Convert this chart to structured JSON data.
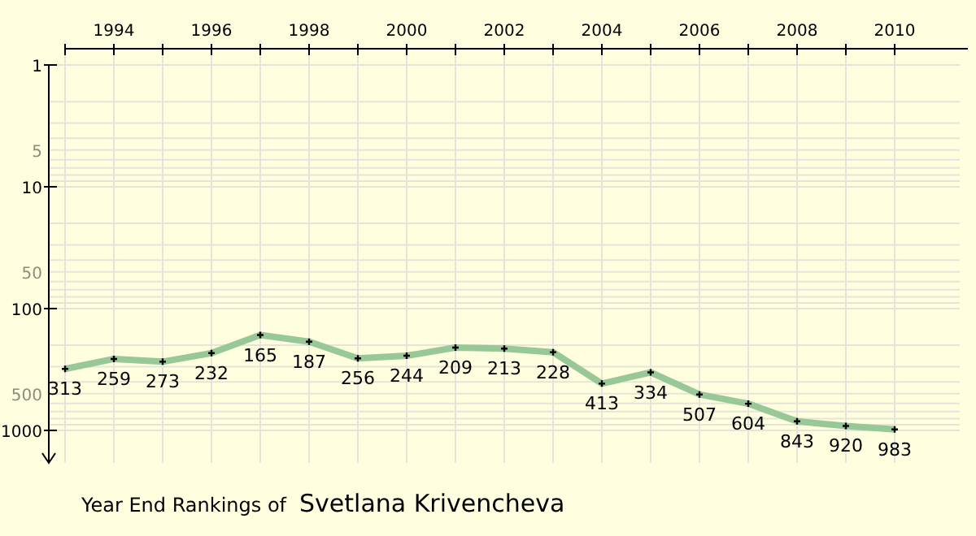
{
  "chart_data": {
    "type": "line",
    "title": "Year End Rankings of",
    "subtitle": "Svetlana Krivencheva",
    "x": [
      1993,
      1994,
      1995,
      1996,
      1997,
      1998,
      1999,
      2000,
      2001,
      2002,
      2003,
      2004,
      2005,
      2006,
      2007,
      2008,
      2009,
      2010
    ],
    "series": [
      {
        "color": "#98c898",
        "values": [
          313,
          259,
          273,
          232,
          165,
          187,
          256,
          244,
          209,
          213,
          228,
          413,
          334,
          507,
          604,
          843,
          920,
          983
        ]
      }
    ],
    "xlim": [
      1993,
      2011.5
    ],
    "xticks": [
      {
        "value": 1993,
        "label": null
      },
      1994,
      {
        "value": 1995,
        "label": null
      },
      1996,
      {
        "value": 1997,
        "label": null
      },
      1998,
      {
        "value": 1999,
        "label": null
      },
      2000,
      {
        "value": 2001,
        "label": null
      },
      2002,
      {
        "value": 2003,
        "label": null
      },
      2004,
      {
        "value": 2005,
        "label": null
      },
      2006,
      {
        "value": 2007,
        "label": null
      },
      2008,
      {
        "value": 2009,
        "label": null
      },
      2010
    ],
    "ylim": [
      1850,
      1
    ],
    "log": true,
    "yticks": [
      1,
      {
        "value": 2,
        "label": null
      },
      {
        "value": 3,
        "label": null
      },
      {
        "value": 4,
        "label": null
      },
      5,
      {
        "value": 6,
        "label": null
      },
      {
        "value": 7,
        "label": null
      },
      {
        "value": 8,
        "label": null
      },
      {
        "value": 9,
        "label": null
      },
      10,
      {
        "value": 20,
        "label": null
      },
      {
        "value": 30,
        "label": null
      },
      {
        "value": 40,
        "label": null
      },
      50,
      {
        "value": 60,
        "label": null
      },
      {
        "value": 70,
        "label": null
      },
      {
        "value": 80,
        "label": null
      },
      {
        "value": 90,
        "label": null
      },
      100,
      {
        "value": 200,
        "label": null
      },
      {
        "value": 300,
        "label": null
      },
      {
        "value": 400,
        "label": null
      },
      500,
      {
        "value": 600,
        "label": null
      },
      {
        "value": 700,
        "label": null
      },
      {
        "value": 800,
        "label": null
      },
      {
        "value": 900,
        "label": null
      },
      1000
    ],
    "grid": true,
    "data_labels": true,
    "marker": "cross",
    "line_style": "solid"
  }
}
